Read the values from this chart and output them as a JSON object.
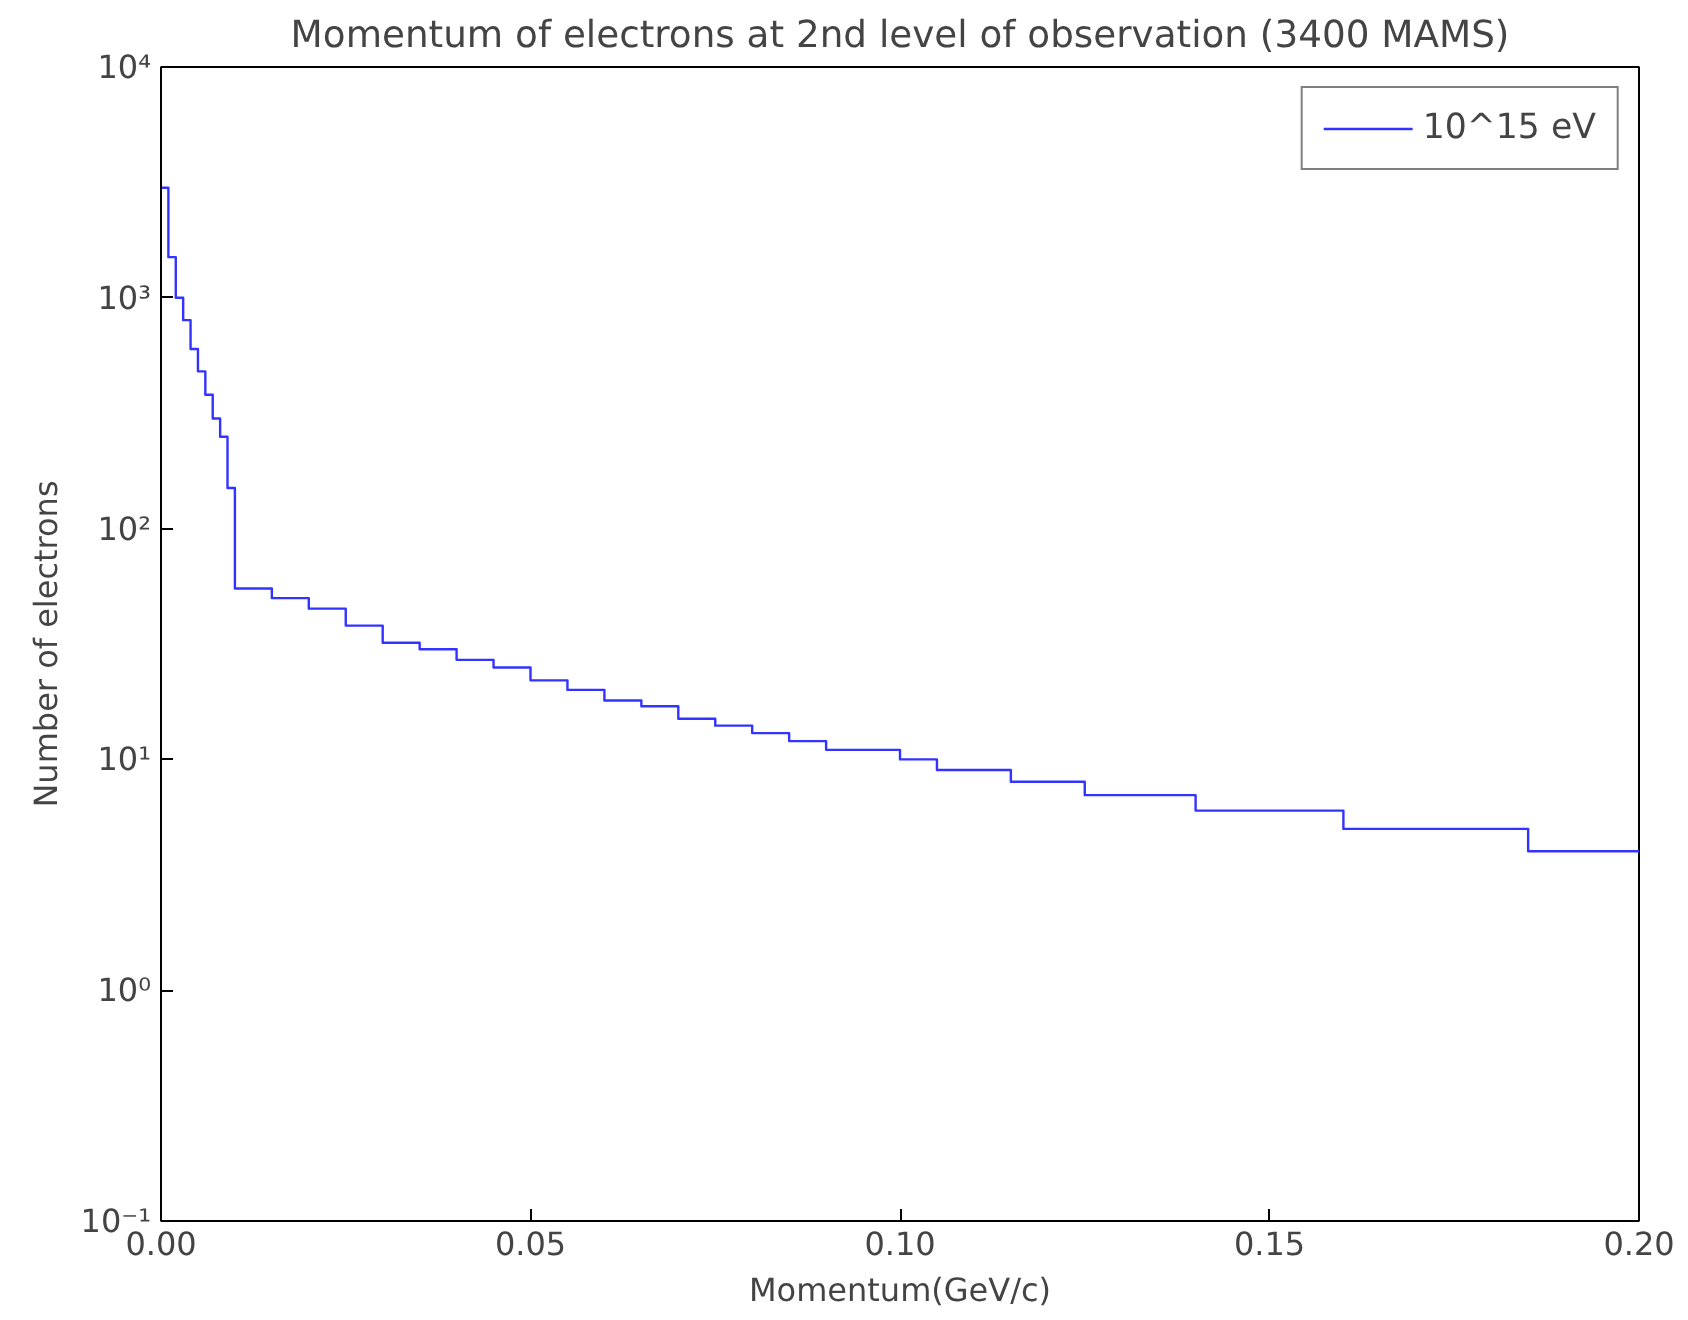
{
  "chart_data": {
    "type": "histogram",
    "title": "Momentum of electrons at 2nd level of observation (3400 MAMS)",
    "xlabel": "Momentum(GeV/c)",
    "ylabel": "Number of electrons",
    "bins": [
      0,
      0.001,
      0.002,
      0.003,
      0.004,
      0.005,
      0.006,
      0.007,
      0.008,
      0.009,
      0.01,
      0.015,
      0.02,
      0.025,
      0.03,
      0.035,
      0.04,
      0.045,
      0.05,
      0.055,
      0.06,
      0.065,
      0.07,
      0.075,
      0.08,
      0.085,
      0.09,
      0.095,
      0.1,
      0.105,
      0.11,
      0.115,
      0.12,
      0.125,
      0.13,
      0.135,
      0.14,
      0.145,
      0.15,
      0.155,
      0.16,
      0.165,
      0.17,
      0.175,
      0.18,
      0.185,
      0.19,
      0.195,
      0.2
    ],
    "series": [
      {
        "name": "10^15 eV",
        "color": "#3333ff",
        "values": [
          3000,
          1500,
          1000,
          800,
          600,
          480,
          380,
          300,
          250,
          150,
          55,
          50,
          45,
          38,
          32,
          30,
          27,
          25,
          22,
          20,
          18,
          17,
          15,
          14,
          13,
          12,
          11,
          11,
          10,
          9,
          9,
          8,
          8,
          7,
          7,
          7,
          6,
          6,
          6,
          6,
          5,
          5,
          5,
          5,
          5,
          4,
          4,
          4
        ]
      }
    ],
    "xlim": [
      0,
      0.2
    ],
    "ylim": [
      0.1,
      10000
    ],
    "log": "y",
    "xticks": [
      {
        "value": 0,
        "label": "0.00"
      },
      {
        "value": 0.05,
        "label": "0.05"
      },
      {
        "value": 0.1,
        "label": "0.10"
      },
      {
        "value": 0.15,
        "label": "0.15"
      },
      {
        "value": 0.2,
        "label": "0.20"
      }
    ],
    "yticks": [
      {
        "value": 0.1,
        "label": "10⁻¹"
      },
      {
        "value": 1,
        "label": "10⁰"
      },
      {
        "value": 10,
        "label": "10¹"
      },
      {
        "value": 100,
        "label": "10²"
      },
      {
        "value": 1000,
        "label": "10³"
      },
      {
        "value": 10000,
        "label": "10⁴"
      }
    ],
    "grid": false,
    "legend": "top right"
  }
}
